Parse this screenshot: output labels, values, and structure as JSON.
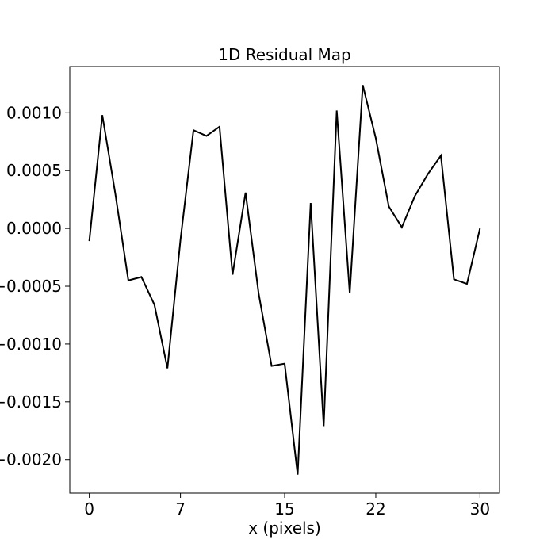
{
  "chart_data": {
    "type": "line",
    "title": "1D Residual Map",
    "xlabel": "x (pixels)",
    "ylabel": "",
    "xlim": [
      -1.5,
      31.5
    ],
    "ylim": [
      -0.00229,
      0.0014
    ],
    "grid": false,
    "legend": "none",
    "line_color": "#000000",
    "x_ticks": [
      {
        "value": 0,
        "label": "0"
      },
      {
        "value": 7,
        "label": "7"
      },
      {
        "value": 15,
        "label": "15"
      },
      {
        "value": 22,
        "label": "22"
      },
      {
        "value": 30,
        "label": "30"
      }
    ],
    "y_ticks": [
      {
        "value": 0.001,
        "label": "0.0010"
      },
      {
        "value": 0.0005,
        "label": "0.0005"
      },
      {
        "value": 0.0,
        "label": "0.0000"
      },
      {
        "value": -0.0005,
        "label": "−0.0005"
      },
      {
        "value": -0.001,
        "label": "−0.0010"
      },
      {
        "value": -0.0015,
        "label": "−0.0015"
      },
      {
        "value": -0.002,
        "label": "−0.0020"
      }
    ],
    "series": [
      {
        "x": [
          0,
          1,
          2,
          3,
          4,
          5,
          6,
          7,
          8,
          9,
          10,
          11,
          12,
          13,
          14,
          15,
          16,
          17,
          18,
          19,
          20,
          21,
          22,
          23,
          24,
          25,
          26,
          27,
          28,
          29,
          30
        ],
        "y": [
          -0.00011,
          0.00098,
          0.0003,
          -0.00045,
          -0.00042,
          -0.00066,
          -0.00121,
          -0.0001,
          0.00085,
          0.0008,
          0.00088,
          -0.0004,
          0.00031,
          -0.00056,
          -0.00119,
          -0.00117,
          -0.00213,
          0.00022,
          -0.00171,
          0.00102,
          -0.00056,
          0.00124,
          0.00078,
          0.00019,
          1e-05,
          0.00028,
          0.00047,
          0.00063,
          -0.00044,
          -0.00048,
          0.0
        ]
      }
    ]
  }
}
